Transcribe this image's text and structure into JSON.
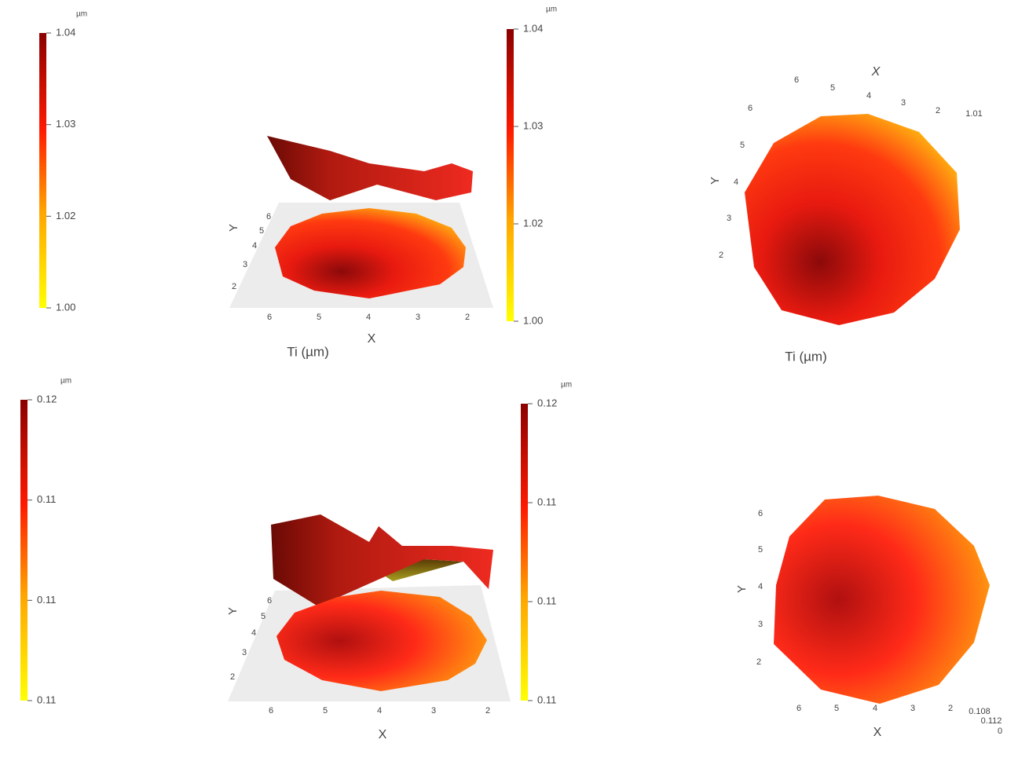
{
  "top": {
    "colorbar_left": {
      "unit": "µm",
      "lim": [
        1.0049,
        1.0355
      ],
      "ticks": [
        {
          "value": 1.0049,
          "label": "1.00"
        },
        {
          "value": 1.0151,
          "label": "1.02"
        },
        {
          "value": 1.0253,
          "label": "1.03"
        },
        {
          "value": 1.0355,
          "label": "1.04"
        }
      ]
    },
    "surface_3d": {
      "title": "Ti (µm)",
      "x_label": "X",
      "y_label": "Y",
      "x_ticks": [
        6,
        5,
        4,
        3,
        2
      ],
      "y_ticks": [
        6,
        5,
        4,
        3,
        2
      ]
    },
    "colorbar_right": {
      "unit": "µm",
      "lim": [
        1.0049,
        1.0355
      ],
      "ticks": [
        {
          "value": 1.0049,
          "label": "1.00"
        },
        {
          "value": 1.0151,
          "label": "1.02"
        },
        {
          "value": 1.0253,
          "label": "1.03"
        },
        {
          "value": 1.0355,
          "label": "1.04"
        }
      ]
    },
    "surface_top_view": {
      "title": "Ti (µm)",
      "x_label": "X",
      "y_label": "Y",
      "x_ticks": [
        6,
        5,
        4,
        3,
        2
      ],
      "y_ticks": [
        6,
        5,
        4,
        3,
        2
      ],
      "z_ticks": [
        "1.01"
      ]
    }
  },
  "bottom": {
    "colorbar_left": {
      "unit": "µm",
      "lim": [
        0.1052,
        0.1172
      ],
      "ticks": [
        {
          "value": 0.1052,
          "label": "0.11"
        },
        {
          "value": 0.1092,
          "label": "0.11"
        },
        {
          "value": 0.1132,
          "label": "0.11"
        },
        {
          "value": 0.1172,
          "label": "0.12"
        }
      ]
    },
    "surface_3d": {
      "x_label": "X",
      "y_label": "Y",
      "x_ticks": [
        6,
        5,
        4,
        3,
        2
      ],
      "y_ticks": [
        6,
        5,
        4,
        3,
        2
      ]
    },
    "colorbar_right": {
      "unit": "µm",
      "lim": [
        0.1052,
        0.1172
      ],
      "ticks": [
        {
          "value": 0.1052,
          "label": "0.11"
        },
        {
          "value": 0.1092,
          "label": "0.11"
        },
        {
          "value": 0.1132,
          "label": "0.11"
        },
        {
          "value": 0.1172,
          "label": "0.12"
        }
      ]
    },
    "surface_top_view": {
      "x_label": "X",
      "y_label": "Y",
      "x_ticks": [
        6,
        5,
        4,
        3,
        2
      ],
      "y_ticks": [
        6,
        5,
        4,
        3,
        2
      ],
      "z_ticks": [
        "0.108",
        "0.112",
        "0"
      ]
    }
  }
}
